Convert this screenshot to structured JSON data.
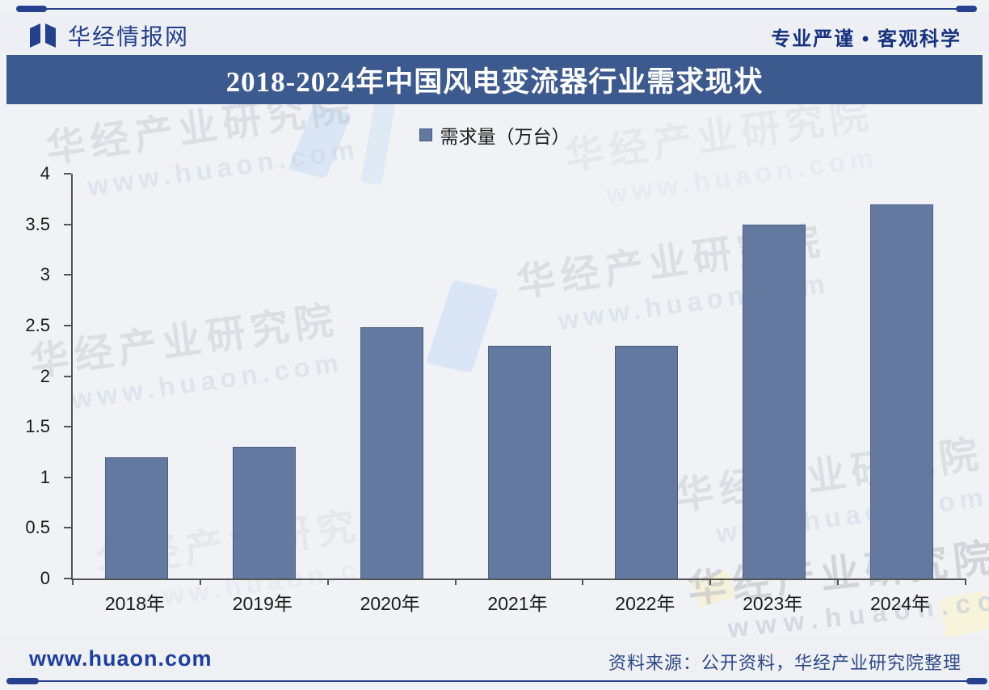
{
  "header": {
    "brand": "华经情报网",
    "slogan": "专业严谨 • 客观科学"
  },
  "title_bar": {
    "title": "2018-2024年中国风电变流器行业需求现状"
  },
  "chart_data": {
    "type": "bar",
    "title": "2018-2024年中国风电变流器行业需求现状",
    "categories": [
      "2018年",
      "2019年",
      "2020年",
      "2021年",
      "2022年",
      "2023年",
      "2024年"
    ],
    "series": [
      {
        "name": "需求量（万台）",
        "values": [
          1.2,
          1.3,
          2.48,
          2.3,
          2.3,
          3.5,
          3.7
        ]
      }
    ],
    "xlabel": "",
    "ylabel": "",
    "ylim": [
      0,
      4
    ],
    "yticks": [
      0,
      0.5,
      1,
      1.5,
      2,
      2.5,
      3,
      3.5,
      4
    ],
    "grid": false,
    "legend_position": "top",
    "bar_color": "#6479a0",
    "bar_border_color": "#4a5f87"
  },
  "legend": {
    "label": "需求量（万台）"
  },
  "footer": {
    "site": "www.huaon.com",
    "source": "资料来源：公开资料，华经产业研究院整理"
  },
  "watermark": {
    "line1": "华经产业研究院",
    "line2": "www.huaon.com"
  },
  "icons": {
    "logo": "open-book-logo-icon",
    "legend_marker": "square-swatch"
  },
  "colors": {
    "title_bar_bg": "#3d5a8f",
    "bar_fill": "#6479a0",
    "axis": "#545454",
    "rule": "#27418f",
    "brand_text": "#24418c",
    "page_bg": "#f1f2f5"
  }
}
